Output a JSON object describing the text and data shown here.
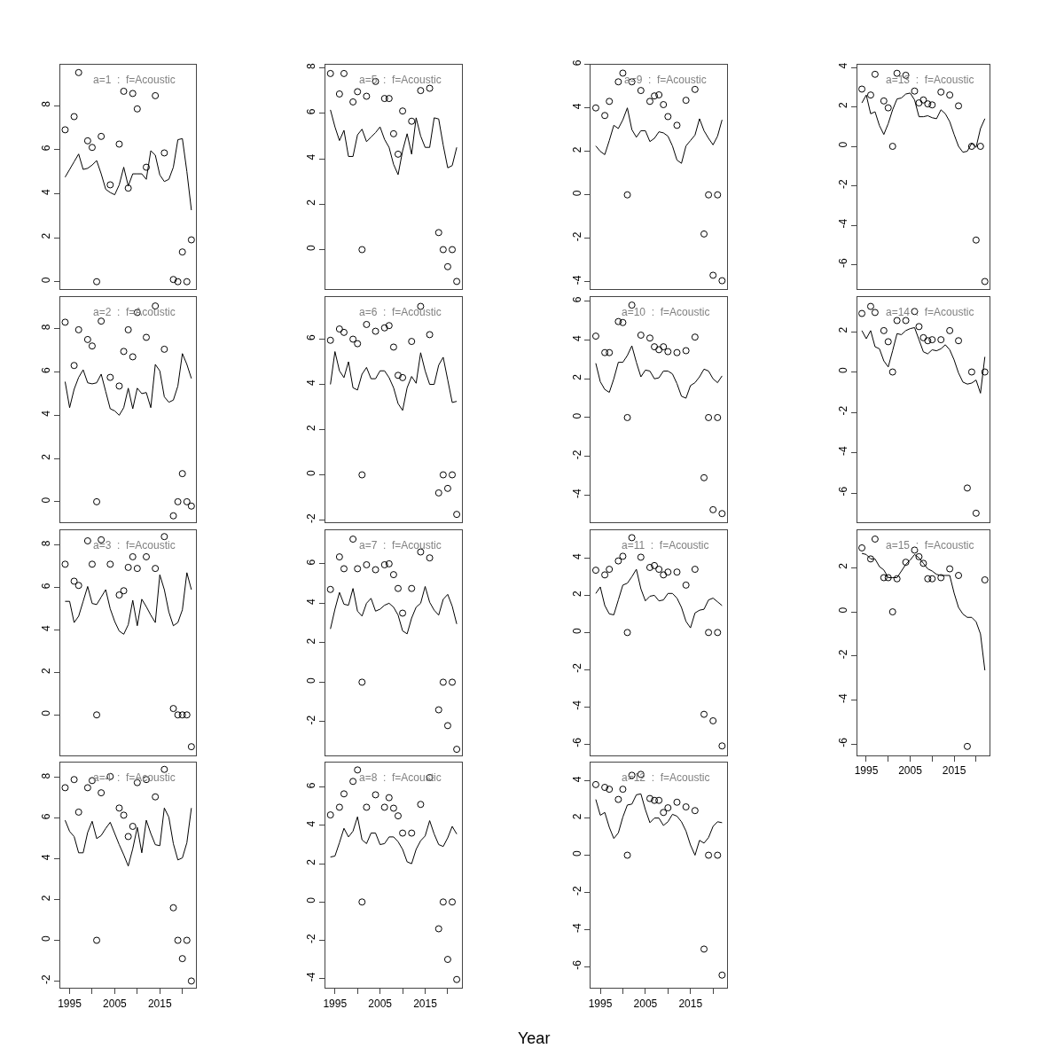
{
  "chart_data": [
    {
      "type": "line",
      "title": "a=1  :  f=Acoustic",
      "x": [
        1994,
        1995,
        1996,
        1997,
        1998,
        1999,
        2000,
        2001,
        2002,
        2003,
        2004,
        2005,
        2006,
        2007,
        2008,
        2009,
        2010,
        2011,
        2012,
        2013,
        2014,
        2015,
        2016,
        2017,
        2018,
        2019,
        2020,
        2021,
        2022
      ],
      "xlim": [
        1992.9,
        2023.1
      ],
      "ylim": [
        -0.35,
        9.87
      ],
      "yticks": [
        0,
        2,
        4,
        6,
        8
      ],
      "tick_labels": "y",
      "series": [
        {
          "type": "scatter",
          "marker": "circle",
          "color": "#000000",
          "x": [
            1994,
            1996,
            1997,
            1999,
            2000,
            2001,
            2002,
            2004,
            2006,
            2007,
            2008,
            2009,
            2010,
            2012,
            2014,
            2016,
            2018,
            2019,
            2020,
            2021,
            2022
          ],
          "values": [
            6.9,
            7.5,
            9.5,
            6.4,
            6.1,
            0,
            6.6,
            4.4,
            6.25,
            8.65,
            4.25,
            8.55,
            7.85,
            5.2,
            8.45,
            5.85,
            0.1,
            0,
            1.35,
            0,
            1.9
          ]
        },
        {
          "type": "line",
          "marker": "none",
          "color": "#000000",
          "values": [
            4.75,
            5.1,
            5.45,
            5.8,
            5.1,
            5.15,
            5.3,
            5.5,
            4.9,
            4.2,
            4.05,
            3.95,
            4.4,
            5.2,
            4.35,
            4.9,
            4.9,
            4.9,
            4.65,
            5.95,
            5.75,
            4.85,
            4.55,
            4.65,
            5.2,
            6.45,
            6.5,
            5.0,
            3.25
          ]
        }
      ]
    },
    {
      "type": "line",
      "title": "a=2  :  f=Acoustic",
      "x": [
        1994,
        1995,
        1996,
        1997,
        1998,
        1999,
        2000,
        2001,
        2002,
        2003,
        2004,
        2005,
        2006,
        2007,
        2008,
        2009,
        2010,
        2011,
        2012,
        2013,
        2014,
        2015,
        2016,
        2017,
        2018,
        2019,
        2020,
        2021,
        2022
      ],
      "xlim": [
        1992.9,
        2023.1
      ],
      "ylim": [
        -0.95,
        9.45
      ],
      "yticks": [
        0,
        2,
        4,
        6,
        8
      ],
      "tick_labels": "y",
      "series": [
        {
          "type": "scatter",
          "marker": "circle",
          "color": "#000000",
          "x": [
            1994,
            1996,
            1997,
            1999,
            2000,
            2001,
            2002,
            2004,
            2006,
            2007,
            2008,
            2009,
            2010,
            2012,
            2014,
            2016,
            2018,
            2019,
            2020,
            2021,
            2022
          ],
          "values": [
            8.3,
            6.3,
            7.95,
            7.5,
            7.2,
            0,
            8.35,
            5.75,
            5.35,
            6.95,
            7.95,
            6.7,
            8.75,
            7.6,
            9.05,
            7.05,
            -0.65,
            0,
            1.3,
            0,
            -0.2
          ]
        },
        {
          "type": "line",
          "marker": "none",
          "color": "#000000",
          "values": [
            5.55,
            4.35,
            5.2,
            5.75,
            6.1,
            5.5,
            5.45,
            5.5,
            5.9,
            5.1,
            4.3,
            4.2,
            4.0,
            4.35,
            5.25,
            4.3,
            5.25,
            5.0,
            5.05,
            4.35,
            6.35,
            6.05,
            4.85,
            4.6,
            4.7,
            5.35,
            6.85,
            6.35,
            5.7
          ]
        }
      ]
    },
    {
      "type": "line",
      "title": "a=3  :  f=Acoustic",
      "x": [
        1994,
        1995,
        1996,
        1997,
        1998,
        1999,
        2000,
        2001,
        2002,
        2003,
        2004,
        2005,
        2006,
        2007,
        2008,
        2009,
        2010,
        2011,
        2012,
        2013,
        2014,
        2015,
        2016,
        2017,
        2018,
        2019,
        2020,
        2021,
        2022
      ],
      "xlim": [
        1992.9,
        2023.1
      ],
      "ylim": [
        -1.9,
        8.7
      ],
      "yticks": [
        0,
        2,
        4,
        6,
        8
      ],
      "tick_labels": "y",
      "series": [
        {
          "type": "scatter",
          "marker": "circle",
          "color": "#000000",
          "x": [
            1994,
            1996,
            1997,
            1999,
            2000,
            2001,
            2002,
            2004,
            2006,
            2007,
            2008,
            2009,
            2010,
            2012,
            2014,
            2016,
            2018,
            2019,
            2020,
            2021,
            2022
          ],
          "values": [
            7.1,
            6.3,
            6.1,
            8.2,
            7.1,
            0,
            8.25,
            7.1,
            5.65,
            5.85,
            6.95,
            7.45,
            6.9,
            7.45,
            6.9,
            8.4,
            0.3,
            0,
            0,
            0,
            -1.5
          ]
        },
        {
          "type": "line",
          "marker": "none",
          "color": "#000000",
          "values": [
            5.35,
            5.35,
            4.35,
            4.65,
            5.35,
            6.05,
            5.25,
            5.2,
            5.55,
            5.9,
            5.0,
            4.4,
            3.95,
            3.8,
            4.25,
            5.4,
            4.2,
            5.45,
            5.1,
            4.7,
            4.35,
            6.6,
            5.9,
            4.85,
            4.2,
            4.35,
            4.95,
            6.7,
            5.9
          ]
        }
      ]
    },
    {
      "type": "line",
      "title": "a=4  :  f=Acoustic",
      "x": [
        1994,
        1995,
        1996,
        1997,
        1998,
        1999,
        2000,
        2001,
        2002,
        2003,
        2004,
        2005,
        2006,
        2007,
        2008,
        2009,
        2010,
        2011,
        2012,
        2013,
        2014,
        2015,
        2016,
        2017,
        2018,
        2019,
        2020,
        2021,
        2022
      ],
      "xlim": [
        1992.9,
        2023.1
      ],
      "xticks": [
        1995,
        {
          "value": 2000,
          "label": null
        },
        2005,
        {
          "value": 2010,
          "label": null
        },
        2015,
        {
          "value": 2020,
          "label": null
        }
      ],
      "ylim": [
        -2.35,
        8.75
      ],
      "yticks": [
        -2,
        0,
        2,
        4,
        6,
        8
      ],
      "series": [
        {
          "type": "scatter",
          "marker": "circle",
          "color": "#000000",
          "x": [
            1994,
            1996,
            1997,
            1999,
            2000,
            2001,
            2002,
            2004,
            2006,
            2007,
            2008,
            2009,
            2010,
            2012,
            2014,
            2016,
            2018,
            2019,
            2020,
            2021,
            2022
          ],
          "values": [
            7.5,
            7.9,
            6.3,
            7.5,
            7.85,
            0,
            7.25,
            8.05,
            6.5,
            6.15,
            5.1,
            5.6,
            7.75,
            7.9,
            7.05,
            8.4,
            1.6,
            0,
            -0.9,
            0,
            -2.0
          ]
        },
        {
          "type": "line",
          "marker": "none",
          "color": "#000000",
          "values": [
            5.9,
            5.35,
            5.1,
            4.3,
            4.3,
            5.3,
            5.85,
            5.0,
            5.15,
            5.5,
            5.8,
            5.25,
            4.7,
            4.2,
            3.65,
            4.5,
            5.55,
            4.3,
            5.9,
            5.25,
            4.7,
            4.65,
            6.5,
            6.05,
            4.75,
            3.95,
            4.05,
            4.8,
            6.5
          ]
        }
      ]
    },
    {
      "type": "line",
      "title": "a=5  :  f=Acoustic",
      "x": [
        1994,
        1995,
        1996,
        1997,
        1998,
        1999,
        2000,
        2001,
        2002,
        2003,
        2004,
        2005,
        2006,
        2007,
        2008,
        2009,
        2010,
        2011,
        2012,
        2013,
        2014,
        2015,
        2016,
        2017,
        2018,
        2019,
        2020,
        2021,
        2022
      ],
      "xlim": [
        1992.9,
        2023.1
      ],
      "ylim": [
        -1.75,
        8.15
      ],
      "yticks": [
        0,
        2,
        4,
        6,
        8
      ],
      "tick_labels": "y",
      "series": [
        {
          "type": "scatter",
          "marker": "circle",
          "color": "#000000",
          "x": [
            1994,
            1996,
            1997,
            1999,
            2000,
            2001,
            2002,
            2004,
            2006,
            2007,
            2008,
            2009,
            2010,
            2012,
            2014,
            2016,
            2018,
            2019,
            2020,
            2021,
            2022
          ],
          "values": [
            7.75,
            6.85,
            7.75,
            6.5,
            6.95,
            0,
            6.75,
            7.4,
            6.65,
            6.65,
            5.1,
            4.2,
            6.1,
            5.65,
            7.0,
            7.1,
            0.75,
            0,
            -0.75,
            0,
            -1.4
          ]
        },
        {
          "type": "line",
          "marker": "none",
          "color": "#000000",
          "values": [
            6.15,
            5.4,
            4.8,
            5.25,
            4.1,
            4.1,
            5.05,
            5.3,
            4.75,
            4.95,
            5.15,
            5.4,
            4.85,
            4.5,
            3.75,
            3.3,
            4.35,
            5.1,
            4.2,
            5.8,
            5.0,
            4.5,
            4.5,
            5.8,
            5.75,
            4.6,
            3.6,
            3.7,
            4.5
          ]
        }
      ]
    },
    {
      "type": "line",
      "title": "a=6  :  f=Acoustic",
      "x": [
        1994,
        1995,
        1996,
        1997,
        1998,
        1999,
        2000,
        2001,
        2002,
        2003,
        2004,
        2005,
        2006,
        2007,
        2008,
        2009,
        2010,
        2011,
        2012,
        2013,
        2014,
        2015,
        2016,
        2017,
        2018,
        2019,
        2020,
        2021,
        2022
      ],
      "xlim": [
        1992.9,
        2023.1
      ],
      "ylim": [
        -2.1,
        7.85
      ],
      "yticks": [
        -2,
        0,
        2,
        4,
        6
      ],
      "tick_labels": "y",
      "series": [
        {
          "type": "scatter",
          "marker": "circle",
          "color": "#000000",
          "x": [
            1994,
            1996,
            1997,
            1999,
            2000,
            2001,
            2002,
            2004,
            2006,
            2007,
            2008,
            2009,
            2010,
            2012,
            2014,
            2016,
            2018,
            2019,
            2020,
            2021,
            2022
          ],
          "values": [
            5.95,
            6.45,
            6.3,
            6.0,
            5.8,
            0,
            6.65,
            6.35,
            6.5,
            6.6,
            5.65,
            4.4,
            4.3,
            5.9,
            7.45,
            6.2,
            -0.8,
            0,
            -0.6,
            0,
            -1.75
          ]
        },
        {
          "type": "line",
          "marker": "none",
          "color": "#000000",
          "values": [
            4.0,
            5.45,
            4.6,
            4.3,
            5.0,
            3.85,
            3.75,
            4.45,
            4.75,
            4.25,
            4.25,
            4.6,
            4.6,
            4.3,
            3.85,
            3.15,
            2.85,
            3.85,
            4.35,
            4.05,
            5.4,
            4.6,
            4.0,
            4.0,
            4.85,
            5.2,
            4.2,
            3.2,
            3.25
          ]
        }
      ]
    },
    {
      "type": "line",
      "title": "a=7  :  f=Acoustic",
      "x": [
        1994,
        1995,
        1996,
        1997,
        1998,
        1999,
        2000,
        2001,
        2002,
        2003,
        2004,
        2005,
        2006,
        2007,
        2008,
        2009,
        2010,
        2011,
        2012,
        2013,
        2014,
        2015,
        2016,
        2017,
        2018,
        2019,
        2020,
        2021,
        2022
      ],
      "xlim": [
        1992.9,
        2023.1
      ],
      "ylim": [
        -3.7,
        7.7
      ],
      "yticks": [
        -2,
        0,
        2,
        4,
        6
      ],
      "tick_labels": "y",
      "series": [
        {
          "type": "scatter",
          "marker": "circle",
          "color": "#000000",
          "x": [
            1994,
            1996,
            1997,
            1999,
            2000,
            2001,
            2002,
            2004,
            2006,
            2007,
            2008,
            2009,
            2010,
            2012,
            2014,
            2016,
            2018,
            2019,
            2020,
            2021,
            2022
          ],
          "values": [
            4.7,
            6.35,
            5.75,
            7.25,
            5.75,
            0,
            5.95,
            5.7,
            5.95,
            6.0,
            5.45,
            4.75,
            3.5,
            4.75,
            6.6,
            6.3,
            -1.4,
            0,
            -2.2,
            0,
            -3.4
          ]
        },
        {
          "type": "line",
          "marker": "none",
          "color": "#000000",
          "values": [
            2.7,
            3.7,
            4.55,
            3.95,
            3.9,
            4.75,
            3.6,
            3.35,
            4.0,
            4.25,
            3.6,
            3.7,
            3.9,
            4.0,
            3.8,
            3.4,
            2.6,
            2.45,
            3.25,
            3.8,
            4.0,
            4.85,
            4.05,
            3.65,
            3.4,
            4.2,
            4.45,
            3.85,
            2.95
          ]
        }
      ]
    },
    {
      "type": "line",
      "title": "a=8  :  f=Acoustic",
      "xlabel": "Year",
      "x": [
        1994,
        1995,
        1996,
        1997,
        1998,
        1999,
        2000,
        2001,
        2002,
        2003,
        2004,
        2005,
        2006,
        2007,
        2008,
        2009,
        2010,
        2011,
        2012,
        2013,
        2014,
        2015,
        2016,
        2017,
        2018,
        2019,
        2020,
        2021,
        2022
      ],
      "xlim": [
        1992.9,
        2023.1
      ],
      "xticks": [
        1995,
        {
          "value": 2000,
          "label": null
        },
        2005,
        {
          "value": 2010,
          "label": null
        },
        2015,
        {
          "value": 2020,
          "label": null
        }
      ],
      "ylim": [
        -4.5,
        7.3
      ],
      "yticks": [
        -4,
        -2,
        0,
        2,
        4,
        6
      ],
      "series": [
        {
          "type": "scatter",
          "marker": "circle",
          "color": "#000000",
          "x": [
            1994,
            1996,
            1997,
            1999,
            2000,
            2001,
            2002,
            2004,
            2006,
            2007,
            2008,
            2009,
            2010,
            2012,
            2014,
            2016,
            2018,
            2019,
            2020,
            2021,
            2022
          ],
          "values": [
            4.55,
            4.95,
            5.65,
            6.3,
            6.9,
            0,
            4.95,
            5.6,
            4.95,
            5.45,
            4.9,
            4.5,
            3.6,
            3.6,
            5.1,
            6.5,
            -1.4,
            0,
            -3.0,
            0,
            -4.05
          ]
        },
        {
          "type": "line",
          "marker": "none",
          "color": "#000000",
          "values": [
            2.35,
            2.4,
            3.1,
            3.85,
            3.4,
            3.7,
            4.45,
            3.25,
            3.05,
            3.6,
            3.6,
            3.0,
            3.05,
            3.4,
            3.4,
            3.15,
            2.75,
            2.1,
            2.0,
            2.75,
            3.2,
            3.45,
            4.25,
            3.55,
            3.0,
            2.9,
            3.35,
            3.95,
            3.55
          ]
        }
      ]
    },
    {
      "type": "line",
      "title": "a=9  :  f=Acoustic",
      "x": [
        1994,
        1995,
        1996,
        1997,
        1998,
        1999,
        2000,
        2001,
        2002,
        2003,
        2004,
        2005,
        2006,
        2007,
        2008,
        2009,
        2010,
        2011,
        2012,
        2013,
        2014,
        2015,
        2016,
        2017,
        2018,
        2019,
        2020,
        2021,
        2022
      ],
      "xlim": [
        1992.9,
        2023.1
      ],
      "ylim": [
        -4.35,
        6.0
      ],
      "yticks": [
        -4,
        -2,
        0,
        2,
        4,
        6
      ],
      "tick_labels": "y",
      "series": [
        {
          "type": "scatter",
          "marker": "circle",
          "color": "#000000",
          "x": [
            1994,
            1996,
            1997,
            1999,
            2000,
            2001,
            2002,
            2004,
            2006,
            2007,
            2008,
            2009,
            2010,
            2012,
            2014,
            2016,
            2018,
            2019,
            2020,
            2021,
            2022
          ],
          "values": [
            4.0,
            3.65,
            4.3,
            5.2,
            5.6,
            0,
            5.2,
            4.8,
            4.3,
            4.55,
            4.6,
            4.15,
            3.6,
            3.2,
            4.35,
            4.85,
            -1.8,
            0,
            -3.7,
            0,
            -3.95
          ]
        },
        {
          "type": "line",
          "marker": "none",
          "color": "#000000",
          "values": [
            2.25,
            2.0,
            1.85,
            2.5,
            3.2,
            3.05,
            3.45,
            4.0,
            3.0,
            2.65,
            2.95,
            2.95,
            2.45,
            2.6,
            2.9,
            2.85,
            2.7,
            2.25,
            1.6,
            1.45,
            2.25,
            2.5,
            2.75,
            3.5,
            2.95,
            2.6,
            2.3,
            2.7,
            3.45
          ]
        }
      ]
    },
    {
      "type": "line",
      "title": "a=10  :  f=Acoustic",
      "x": [
        1994,
        1995,
        1996,
        1997,
        1998,
        1999,
        2000,
        2001,
        2002,
        2003,
        2004,
        2005,
        2006,
        2007,
        2008,
        2009,
        2010,
        2011,
        2012,
        2013,
        2014,
        2015,
        2016,
        2017,
        2018,
        2019,
        2020,
        2021,
        2022
      ],
      "xlim": [
        1992.9,
        2023.1
      ],
      "ylim": [
        -5.4,
        6.2
      ],
      "yticks": [
        -4,
        -2,
        0,
        2,
        4,
        6
      ],
      "tick_labels": "y",
      "series": [
        {
          "type": "scatter",
          "marker": "circle",
          "color": "#000000",
          "x": [
            1994,
            1996,
            1997,
            1999,
            2000,
            2001,
            2002,
            2004,
            2006,
            2007,
            2008,
            2009,
            2010,
            2012,
            2014,
            2016,
            2018,
            2019,
            2020,
            2021,
            2022
          ],
          "values": [
            4.2,
            3.35,
            3.35,
            4.95,
            4.9,
            0,
            5.8,
            4.25,
            4.1,
            3.65,
            3.5,
            3.65,
            3.4,
            3.35,
            3.45,
            4.15,
            -3.1,
            0,
            -4.75,
            0,
            -4.95
          ]
        },
        {
          "type": "line",
          "marker": "none",
          "color": "#000000",
          "values": [
            2.8,
            1.85,
            1.45,
            1.3,
            2.0,
            2.85,
            2.85,
            3.2,
            3.7,
            2.85,
            2.1,
            2.45,
            2.4,
            2.0,
            2.05,
            2.4,
            2.4,
            2.25,
            1.75,
            1.1,
            1.0,
            1.65,
            1.8,
            2.1,
            2.5,
            2.4,
            2.0,
            1.8,
            2.15
          ]
        }
      ]
    },
    {
      "type": "line",
      "title": "a=11  :  f=Acoustic",
      "x": [
        1994,
        1995,
        1996,
        1997,
        1998,
        1999,
        2000,
        2001,
        2002,
        2003,
        2004,
        2005,
        2006,
        2007,
        2008,
        2009,
        2010,
        2011,
        2012,
        2013,
        2014,
        2015,
        2016,
        2017,
        2018,
        2019,
        2020,
        2021,
        2022
      ],
      "xlim": [
        1992.9,
        2023.1
      ],
      "ylim": [
        -6.6,
        5.5
      ],
      "yticks": [
        -6,
        -4,
        -2,
        0,
        2,
        4
      ],
      "tick_labels": "y",
      "series": [
        {
          "type": "scatter",
          "marker": "circle",
          "color": "#000000",
          "x": [
            1994,
            1996,
            1997,
            1999,
            2000,
            2001,
            2002,
            2004,
            2006,
            2007,
            2008,
            2009,
            2010,
            2012,
            2014,
            2016,
            2018,
            2019,
            2020,
            2021,
            2022
          ],
          "values": [
            3.35,
            3.1,
            3.4,
            3.85,
            4.1,
            0,
            5.1,
            4.05,
            3.5,
            3.6,
            3.4,
            3.1,
            3.25,
            3.25,
            2.55,
            3.4,
            -4.4,
            0,
            -4.75,
            0,
            -6.1
          ]
        },
        {
          "type": "line",
          "marker": "none",
          "color": "#000000",
          "values": [
            2.1,
            2.45,
            1.45,
            1.0,
            0.95,
            1.75,
            2.55,
            2.65,
            3.0,
            3.4,
            2.35,
            1.7,
            1.95,
            2.0,
            1.7,
            1.75,
            2.1,
            2.1,
            1.85,
            1.35,
            0.6,
            0.25,
            1.05,
            1.2,
            1.25,
            1.75,
            1.85,
            1.65,
            1.45
          ]
        }
      ]
    },
    {
      "type": "line",
      "title": "a=12  :  f=Acoustic",
      "x": [
        1994,
        1995,
        1996,
        1997,
        1998,
        1999,
        2000,
        2001,
        2002,
        2003,
        2004,
        2005,
        2006,
        2007,
        2008,
        2009,
        2010,
        2011,
        2012,
        2013,
        2014,
        2015,
        2016,
        2017,
        2018,
        2019,
        2020,
        2021,
        2022
      ],
      "xlim": [
        1992.9,
        2023.1
      ],
      "xticks": [
        1995,
        {
          "value": 2000,
          "label": null
        },
        2005,
        {
          "value": 2010,
          "label": null
        },
        2015,
        {
          "value": 2020,
          "label": null
        }
      ],
      "ylim": [
        -7.15,
        5.0
      ],
      "yticks": [
        -6,
        -4,
        -2,
        0,
        2,
        4
      ],
      "series": [
        {
          "type": "scatter",
          "marker": "circle",
          "color": "#000000",
          "x": [
            1994,
            1996,
            1997,
            1999,
            2000,
            2001,
            2002,
            2004,
            2006,
            2007,
            2008,
            2009,
            2010,
            2012,
            2014,
            2016,
            2018,
            2019,
            2020,
            2021,
            2022
          ],
          "values": [
            3.8,
            3.65,
            3.55,
            3.0,
            3.55,
            0,
            4.3,
            4.35,
            3.05,
            2.95,
            2.95,
            2.3,
            2.55,
            2.85,
            2.6,
            2.4,
            -5.05,
            0,
            null,
            0,
            -6.45
          ]
        },
        {
          "type": "line",
          "marker": "none",
          "color": "#000000",
          "values": [
            3.0,
            2.15,
            2.3,
            1.5,
            0.9,
            1.2,
            2.05,
            2.7,
            2.75,
            3.25,
            3.3,
            2.45,
            1.75,
            2.0,
            2.0,
            1.6,
            1.8,
            2.2,
            2.1,
            1.8,
            1.3,
            0.55,
            0.0,
            0.8,
            0.65,
            0.95,
            1.55,
            1.8,
            1.75
          ]
        }
      ]
    },
    {
      "type": "line",
      "title": "a=13  :  f=Acoustic",
      "x": [
        1994,
        1995,
        1996,
        1997,
        1998,
        1999,
        2000,
        2001,
        2002,
        2003,
        2004,
        2005,
        2006,
        2007,
        2008,
        2009,
        2010,
        2011,
        2012,
        2013,
        2014,
        2015,
        2016,
        2017,
        2018,
        2019,
        2020,
        2021,
        2022
      ],
      "xlim": [
        1992.9,
        2023.1
      ],
      "ylim": [
        -7.25,
        4.15
      ],
      "yticks": [
        -6,
        -4,
        -2,
        0,
        2,
        4
      ],
      "tick_labels": "y",
      "series": [
        {
          "type": "scatter",
          "marker": "circle",
          "color": "#000000",
          "x": [
            1994,
            1996,
            1997,
            1999,
            2000,
            2001,
            2002,
            2004,
            2006,
            2007,
            2008,
            2009,
            2010,
            2012,
            2014,
            2016,
            2018,
            2019,
            2020,
            2021,
            2022
          ],
          "values": [
            2.9,
            2.6,
            3.65,
            2.3,
            1.95,
            0,
            3.7,
            3.6,
            2.8,
            2.2,
            2.35,
            2.15,
            2.1,
            2.75,
            2.6,
            2.05,
            null,
            0,
            -4.75,
            0,
            -6.85
          ]
        },
        {
          "type": "line",
          "marker": "none",
          "color": "#000000",
          "values": [
            2.2,
            2.6,
            1.65,
            1.75,
            1.05,
            0.6,
            1.15,
            1.85,
            2.4,
            2.45,
            2.65,
            2.7,
            2.35,
            1.5,
            1.5,
            1.55,
            1.45,
            1.4,
            1.85,
            1.65,
            1.25,
            0.6,
            0.0,
            -0.3,
            -0.25,
            0.15,
            -0.05,
            0.9,
            1.4
          ]
        }
      ]
    },
    {
      "type": "line",
      "title": "a=14  :  f=Acoustic",
      "x": [
        1994,
        1995,
        1996,
        1997,
        1998,
        1999,
        2000,
        2001,
        2002,
        2003,
        2004,
        2005,
        2006,
        2007,
        2008,
        2009,
        2010,
        2011,
        2012,
        2013,
        2014,
        2015,
        2016,
        2017,
        2018,
        2019,
        2020,
        2021,
        2022
      ],
      "xlim": [
        1992.9,
        2023.1
      ],
      "ylim": [
        -7.45,
        3.7
      ],
      "yticks": [
        -6,
        -4,
        -2,
        0,
        2
      ],
      "tick_labels": "y",
      "series": [
        {
          "type": "scatter",
          "marker": "circle",
          "color": "#000000",
          "x": [
            1994,
            1996,
            1997,
            1999,
            2000,
            2001,
            2002,
            2004,
            2006,
            2007,
            2008,
            2009,
            2010,
            2012,
            2014,
            2016,
            2018,
            2019,
            2020,
            2021,
            2022
          ],
          "values": [
            2.9,
            3.25,
            2.95,
            2.05,
            1.5,
            0,
            2.55,
            2.55,
            3.0,
            2.25,
            1.7,
            1.55,
            1.6,
            1.6,
            2.05,
            1.55,
            -5.75,
            0,
            -7.0,
            null,
            0
          ]
        },
        {
          "type": "line",
          "marker": "none",
          "color": "#000000",
          "values": [
            2.05,
            1.65,
            2.05,
            1.25,
            1.15,
            0.55,
            0.25,
            1.05,
            1.9,
            1.85,
            2.05,
            2.15,
            2.2,
            1.6,
            1.0,
            0.9,
            1.1,
            1.05,
            1.15,
            1.35,
            1.1,
            0.6,
            -0.05,
            -0.5,
            -0.6,
            -0.55,
            -0.4,
            -1.05,
            0.75
          ]
        }
      ]
    },
    {
      "type": "line",
      "title": "a=15  :  f=Acoustic",
      "x": [
        1994,
        1995,
        1996,
        1997,
        1998,
        1999,
        2000,
        2001,
        2002,
        2003,
        2004,
        2005,
        2006,
        2007,
        2008,
        2009,
        2010,
        2011,
        2012,
        2013,
        2014,
        2015,
        2016,
        2017,
        2018,
        2019,
        2020,
        2021,
        2022
      ],
      "xlim": [
        1992.9,
        2023.1
      ],
      "xticks": [
        1995,
        {
          "value": 2000,
          "label": null
        },
        2005,
        {
          "value": 2010,
          "label": null
        },
        2015,
        {
          "value": 2020,
          "label": null
        }
      ],
      "ylim": [
        -6.5,
        3.7
      ],
      "yticks": [
        -6,
        -4,
        -2,
        0,
        2
      ],
      "series": [
        {
          "type": "scatter",
          "marker": "circle",
          "color": "#000000",
          "x": [
            1994,
            1996,
            1997,
            1999,
            2000,
            2001,
            2002,
            2004,
            2006,
            2007,
            2008,
            2009,
            2010,
            2012,
            2014,
            2016,
            2018,
            2019,
            2020,
            2021,
            2022
          ],
          "values": [
            2.9,
            2.4,
            3.3,
            1.55,
            1.55,
            0,
            1.5,
            2.25,
            2.8,
            2.5,
            2.2,
            1.5,
            1.5,
            1.55,
            1.95,
            1.65,
            -6.1,
            null,
            null,
            null,
            1.45
          ]
        },
        {
          "type": "line",
          "marker": "none",
          "color": "#000000",
          "values": [
            2.65,
            2.6,
            2.4,
            2.4,
            2.05,
            1.9,
            1.55,
            1.55,
            1.55,
            1.85,
            2.15,
            2.35,
            2.6,
            2.45,
            2.2,
            1.95,
            1.85,
            1.7,
            1.65,
            1.65,
            1.65,
            0.85,
            0.2,
            -0.1,
            -0.25,
            -0.25,
            -0.45,
            -1.0,
            -2.65
          ]
        }
      ]
    }
  ]
}
